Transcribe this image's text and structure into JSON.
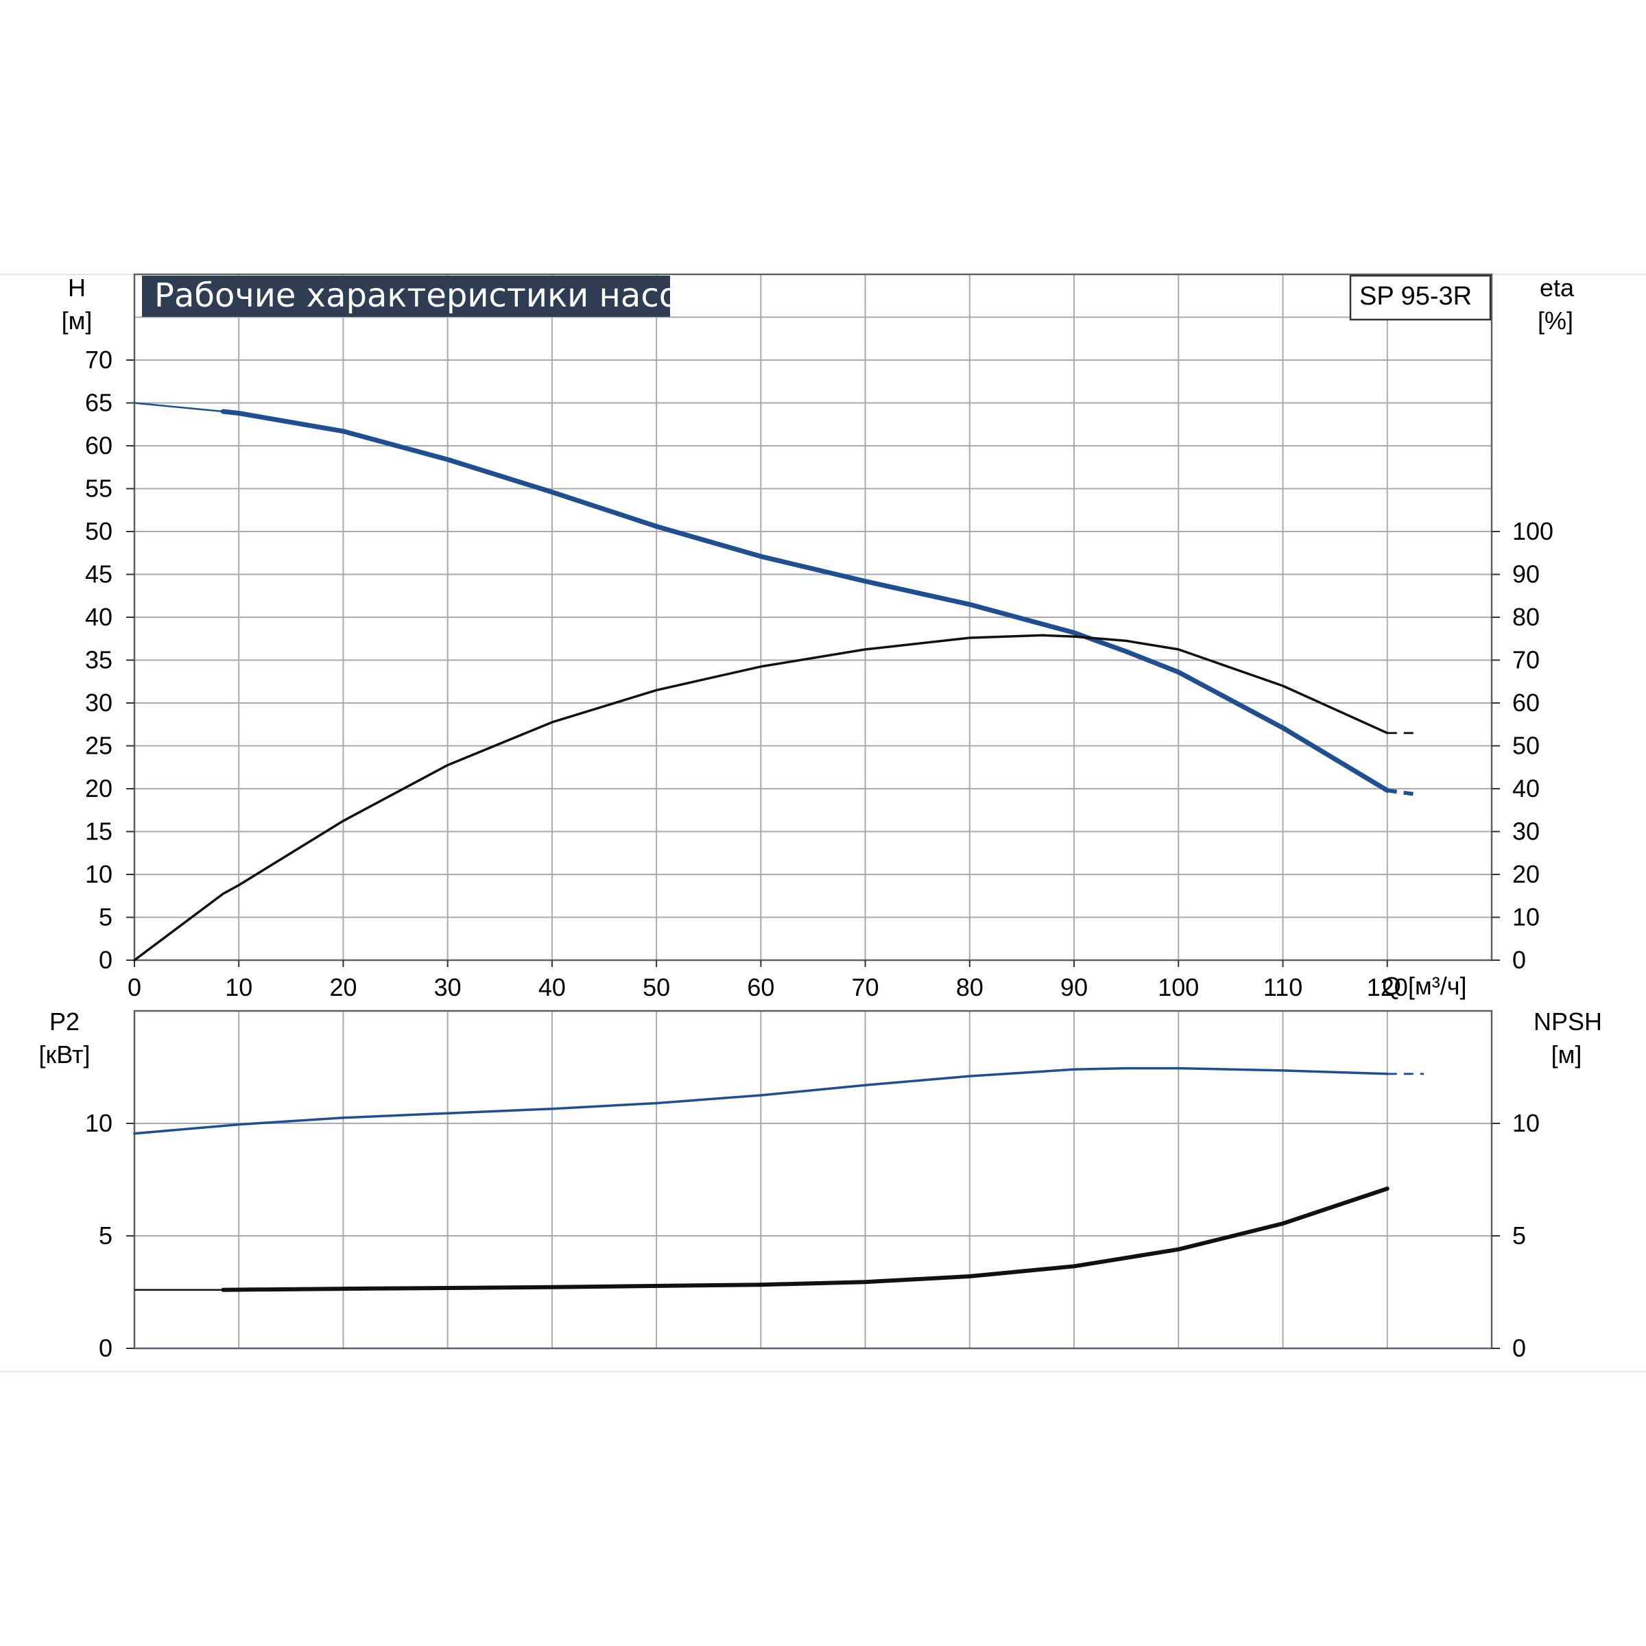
{
  "title": "Рабочие характеристики насоса",
  "model": "SP 95-3R",
  "colors": {
    "blue": "#1f4f91",
    "black": "#111111",
    "title_bg": "#2f3d52",
    "grid": "#a8abb3"
  },
  "chart_data": [
    {
      "type": "line",
      "panel": "top",
      "left_axis": {
        "label": "H",
        "unit": "[м]",
        "ylim": [
          0,
          80
        ],
        "ticks": [
          "0",
          "5",
          "10",
          "15",
          "20",
          "25",
          "30",
          "35",
          "40",
          "45",
          "50",
          "55",
          "60",
          "65",
          "70"
        ]
      },
      "right_axis": {
        "label": "eta",
        "unit": "[%]",
        "ylim": [
          0,
          160
        ],
        "ticks": [
          "0",
          "10",
          "20",
          "30",
          "40",
          "50",
          "60",
          "70",
          "80",
          "90",
          "100"
        ]
      },
      "x_axis": {
        "label": "Q [м³/ч]",
        "xlim": [
          0,
          130
        ],
        "ticks": [
          "0",
          "10",
          "20",
          "30",
          "40",
          "50",
          "60",
          "70",
          "80",
          "90",
          "100",
          "110",
          "120"
        ]
      },
      "grid": true,
      "series": [
        {
          "axis": "left",
          "color": "blue",
          "thin_x": [
            0,
            8.5
          ],
          "x": [
            8.5,
            10,
            20,
            30,
            40,
            50,
            60,
            70,
            80,
            90,
            95,
            100,
            110,
            120
          ],
          "y": [
            64,
            63.8,
            61.7,
            58.4,
            54.6,
            50.6,
            47.1,
            44.2,
            41.5,
            38.2,
            36.0,
            33.6,
            27.1,
            19.8
          ],
          "thin_y": [
            65,
            64
          ],
          "dashed_x": [
            120,
            123
          ],
          "dashed_y": [
            19.8,
            19.3
          ]
        },
        {
          "axis": "right",
          "color": "black",
          "x": [
            0,
            8.5,
            10,
            20,
            30,
            40,
            50,
            60,
            70,
            80,
            87,
            90,
            95,
            100,
            110,
            120
          ],
          "y": [
            0,
            15.5,
            17.5,
            32.5,
            45.5,
            55.5,
            63,
            68.5,
            72.5,
            75.2,
            75.8,
            75.5,
            74.5,
            72.5,
            64,
            53
          ],
          "dashed_x": [
            120,
            123
          ],
          "dashed_y": [
            53,
            53
          ]
        }
      ]
    },
    {
      "type": "line",
      "panel": "bottom",
      "left_axis": {
        "label": "P2",
        "unit": "[кВт]",
        "ylim": [
          0,
          15
        ],
        "ticks": [
          "0",
          "5",
          "10"
        ]
      },
      "right_axis": {
        "label": "NPSH",
        "unit": "[м]",
        "ylim": [
          0,
          15
        ],
        "ticks": [
          "0",
          "5",
          "10"
        ]
      },
      "x_axis": {
        "xlim": [
          0,
          130
        ]
      },
      "grid": true,
      "series": [
        {
          "axis": "left",
          "color": "blue",
          "x": [
            0,
            10,
            20,
            30,
            40,
            50,
            60,
            70,
            80,
            90,
            95,
            100,
            110,
            120
          ],
          "y": [
            9.55,
            9.95,
            10.25,
            10.45,
            10.65,
            10.9,
            11.25,
            11.7,
            12.1,
            12.4,
            12.45,
            12.45,
            12.35,
            12.2
          ],
          "dashed_x": [
            120,
            123.5
          ],
          "dashed_y": [
            12.2,
            12.2
          ]
        },
        {
          "axis": "right",
          "color": "black",
          "thin_x": [
            0,
            8.5
          ],
          "thin_y": [
            2.6,
            2.6
          ],
          "x": [
            8.5,
            20,
            40,
            60,
            70,
            80,
            90,
            100,
            110,
            120
          ],
          "y": [
            2.6,
            2.65,
            2.72,
            2.83,
            2.95,
            3.2,
            3.65,
            4.4,
            5.55,
            7.1
          ]
        }
      ]
    }
  ]
}
